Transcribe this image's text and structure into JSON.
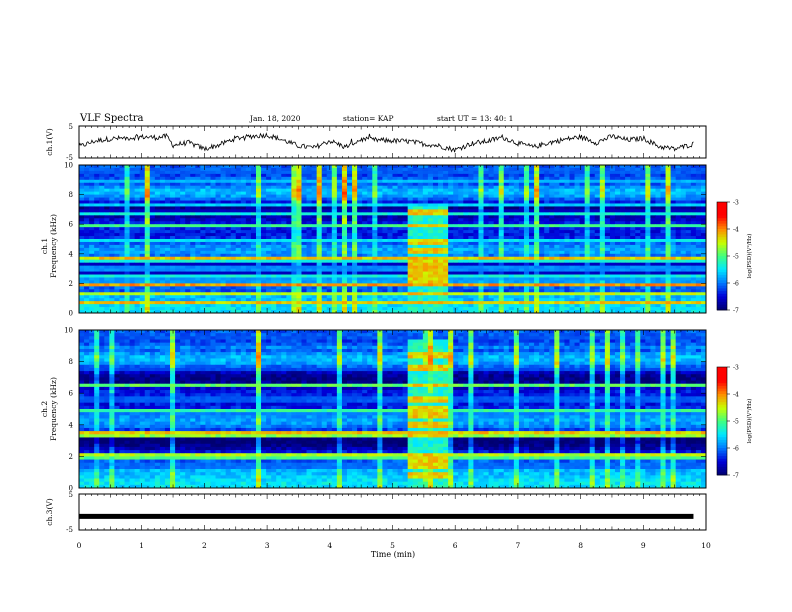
{
  "header": {
    "title": "VLF Spectra",
    "date": "Jan. 18, 2020",
    "station": "station= KAP",
    "start": "start  UT  =   13: 40: 1"
  },
  "colors": {
    "colormap": [
      "#000070",
      "#0000d8",
      "#0078ff",
      "#00e8ff",
      "#40ff80",
      "#c8ff00",
      "#ff8c00",
      "#ff0000",
      "#ffffff"
    ]
  },
  "chart_data": [
    {
      "type": "line",
      "name": "ch1-waveform",
      "ylabel": "ch.1(V)",
      "yticks": [
        "5",
        "-5"
      ],
      "ylim": [
        -5,
        5
      ],
      "x": [
        0,
        0.25,
        0.5,
        0.75,
        1.0,
        1.25,
        1.4,
        1.5,
        1.75,
        2.0,
        2.25,
        2.5,
        2.75,
        3.0,
        3.25,
        3.5,
        3.75,
        4.0,
        4.25,
        4.5,
        4.75,
        5.0,
        5.25,
        5.5,
        5.75,
        6.0,
        6.25,
        6.5,
        6.75,
        7.0,
        7.25,
        7.5,
        7.75,
        8.0,
        8.25,
        8.5,
        8.75,
        9.0,
        9.25,
        9.5,
        9.8
      ],
      "values": [
        -1.5,
        0.3,
        1.0,
        1.2,
        1.6,
        1.4,
        1.8,
        -1.0,
        -0.2,
        -2.2,
        -0.8,
        1.2,
        1.8,
        2.2,
        0.6,
        -1.2,
        -1.8,
        0.4,
        -1.6,
        0.8,
        0.6,
        0.4,
        0.2,
        -0.6,
        -1.2,
        -2.5,
        -0.5,
        0.2,
        1.5,
        -0.4,
        -1.6,
        -0.2,
        0.8,
        1.6,
        -0.2,
        1.8,
        0.6,
        1.2,
        -1.4,
        -2.2,
        -0.6
      ]
    },
    {
      "type": "heatmap",
      "name": "ch1-spectrogram",
      "ylabel_top": "ch.1",
      "ylabel": "Frequency (kHz)",
      "ylim": [
        0,
        10
      ],
      "xlim": [
        0,
        10
      ],
      "yticks": [
        "0",
        "2",
        "4",
        "6",
        "8",
        "10"
      ],
      "burst": {
        "x_start": 5.3,
        "x_end": 5.85,
        "f_max": 7.3
      },
      "bands": [
        {
          "f": 0.7,
          "level": 0.85
        },
        {
          "f": 1.3,
          "level": 0.75
        },
        {
          "f": 1.9,
          "level": 0.9
        },
        {
          "f": 2.2,
          "level": 0.8
        },
        {
          "f": 2.55,
          "level": 0.7
        },
        {
          "f": 3.0,
          "level": 0.75
        },
        {
          "f": 3.45,
          "level": 0.7
        },
        {
          "f": 3.7,
          "level": 0.85
        },
        {
          "f": 4.2,
          "level": 0.6
        },
        {
          "f": 4.85,
          "level": 0.65
        },
        {
          "f": 5.9,
          "level": 0.6
        },
        {
          "f": 6.75,
          "level": 0.7
        },
        {
          "f": 7.35,
          "level": 0.6
        },
        {
          "f": 8.85,
          "level": 0.55
        },
        {
          "f": 9.6,
          "level": 0.6
        }
      ],
      "colorbar": {
        "label": "log(PSD)(V²/Hz)",
        "ticks": [
          "-3",
          "-4",
          "-5",
          "-6",
          "-7"
        ],
        "range": [
          -7,
          -3
        ]
      }
    },
    {
      "type": "heatmap",
      "name": "ch2-spectrogram",
      "ylabel_top": "ch.2",
      "ylabel": "Frequency (kHz)",
      "ylim": [
        0,
        10
      ],
      "xlim": [
        0,
        10
      ],
      "yticks": [
        "0",
        "2",
        "4",
        "6",
        "8",
        "10"
      ],
      "burst": {
        "x_start": 5.3,
        "x_end": 5.85,
        "f_max": 9.5
      },
      "bands": [
        {
          "f": 0.8,
          "level": 0.7
        },
        {
          "f": 1.4,
          "level": 0.65
        },
        {
          "f": 1.85,
          "level": 0.85
        },
        {
          "f": 2.1,
          "level": 0.75
        },
        {
          "f": 3.3,
          "level": 0.7
        },
        {
          "f": 3.5,
          "level": 0.85
        },
        {
          "f": 4.0,
          "level": 0.6
        },
        {
          "f": 4.6,
          "level": 0.7
        },
        {
          "f": 4.95,
          "level": 0.8
        },
        {
          "f": 5.6,
          "level": 0.6
        },
        {
          "f": 6.5,
          "level": 0.65
        },
        {
          "f": 7.6,
          "level": 0.55
        },
        {
          "f": 8.4,
          "level": 0.6
        },
        {
          "f": 9.6,
          "level": 0.55
        }
      ],
      "colorbar": {
        "label": "log(PSD)(V²/Hz)",
        "ticks": [
          "-3",
          "-4",
          "-5",
          "-6",
          "-7"
        ],
        "range": [
          -7,
          -3
        ]
      }
    },
    {
      "type": "line",
      "name": "ch3-waveform",
      "ylabel": "ch.3(V)",
      "yticks": [
        "5",
        "-5"
      ],
      "ylim": [
        -5,
        5
      ],
      "x": [
        0,
        9.8
      ],
      "values": [
        -1.2,
        -1.2
      ]
    }
  ],
  "xaxis": {
    "label": "Time (min)",
    "ticks": [
      "0",
      "1",
      "2",
      "3",
      "4",
      "5",
      "6",
      "7",
      "8",
      "9",
      "10"
    ],
    "xlim": [
      0,
      10
    ]
  }
}
